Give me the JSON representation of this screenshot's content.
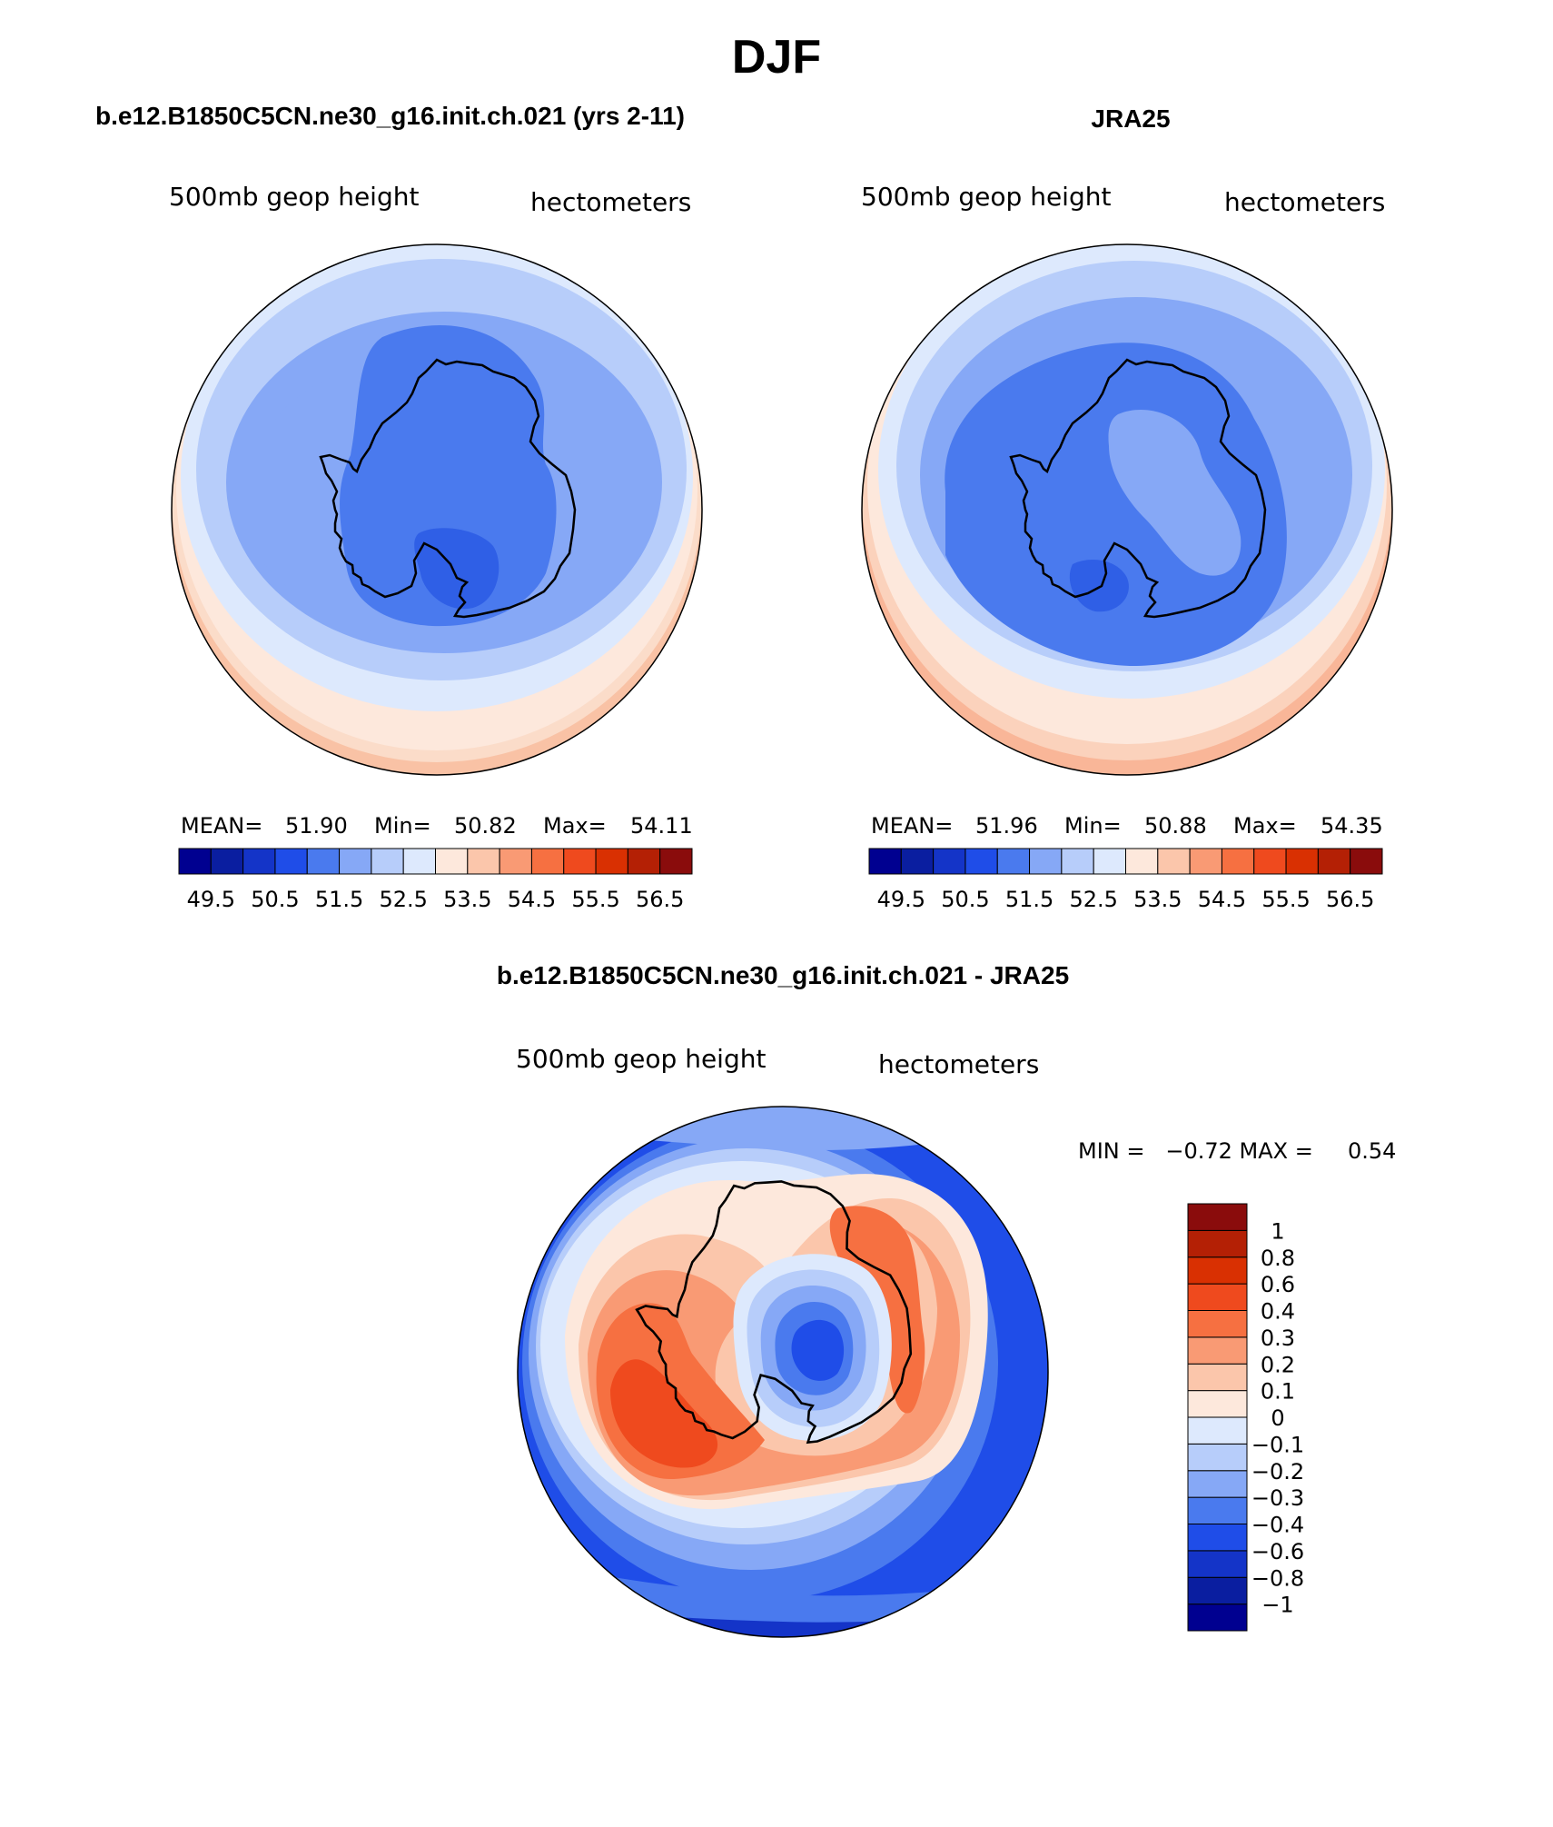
{
  "page_title": "DJF",
  "colors": {
    "scale": [
      "#000090",
      "#0a1ea0",
      "#1434c8",
      "#1f4de8",
      "#4a7aee",
      "#86a8f6",
      "#b7cdfa",
      "#dde9fd",
      "#fde8dc",
      "#fbc6ab",
      "#f99a74",
      "#f67041",
      "#ef4a1e",
      "#d93002",
      "#b42005",
      "#8a0c0c"
    ],
    "coast": "#000000"
  },
  "chart_data": [
    {
      "type": "contour_map",
      "projection": "south polar stereographic",
      "title": "b.e12.B1850C5CN.ne30_g16.init.ch.021 (yrs 2-11)",
      "left_label": "500mb geop height",
      "right_label": "hectometers",
      "stats": {
        "mean_label": "MEAN=",
        "mean": "51.90",
        "min_label": "Min=",
        "min": "50.82",
        "max_label": "Max=",
        "max": "54.11"
      },
      "levels": [
        49.5,
        50,
        50.5,
        51,
        51.5,
        52,
        52.5,
        53,
        53.5,
        54,
        54.5,
        55,
        55.5,
        56,
        56.5
      ],
      "colorbar_tick_labels": [
        "49.5",
        "50.5",
        "51.5",
        "52.5",
        "53.5",
        "54.5",
        "55.5",
        "56.5"
      ]
    },
    {
      "type": "contour_map",
      "projection": "south polar stereographic",
      "title": "JRA25",
      "left_label": "500mb geop height",
      "right_label": "hectometers",
      "stats": {
        "mean_label": "MEAN=",
        "mean": "51.96",
        "min_label": "Min=",
        "min": "50.88",
        "max_label": "Max=",
        "max": "54.35"
      },
      "levels": [
        49.5,
        50,
        50.5,
        51,
        51.5,
        52,
        52.5,
        53,
        53.5,
        54,
        54.5,
        55,
        55.5,
        56,
        56.5
      ],
      "colorbar_tick_labels": [
        "49.5",
        "50.5",
        "51.5",
        "52.5",
        "53.5",
        "54.5",
        "55.5",
        "56.5"
      ]
    },
    {
      "type": "contour_map",
      "projection": "south polar stereographic",
      "title": "b.e12.B1850C5CN.ne30_g16.init.ch.021 - JRA25",
      "left_label": "500mb geop height",
      "right_label": "hectometers",
      "minmax_text": "MIN =   −0.72 MAX =     0.54",
      "min": -0.72,
      "max": 0.54,
      "levels": [
        -1,
        -0.8,
        -0.6,
        -0.4,
        -0.3,
        -0.2,
        -0.1,
        0,
        0.1,
        0.2,
        0.3,
        0.4,
        0.6,
        0.8,
        1
      ],
      "colorbar_tick_labels": [
        "1",
        "0.8",
        "0.6",
        "0.4",
        "0.3",
        "0.2",
        "0.1",
        "0",
        "−0.1",
        "−0.2",
        "−0.3",
        "−0.4",
        "−0.6",
        "−0.8",
        "−1"
      ]
    }
  ]
}
